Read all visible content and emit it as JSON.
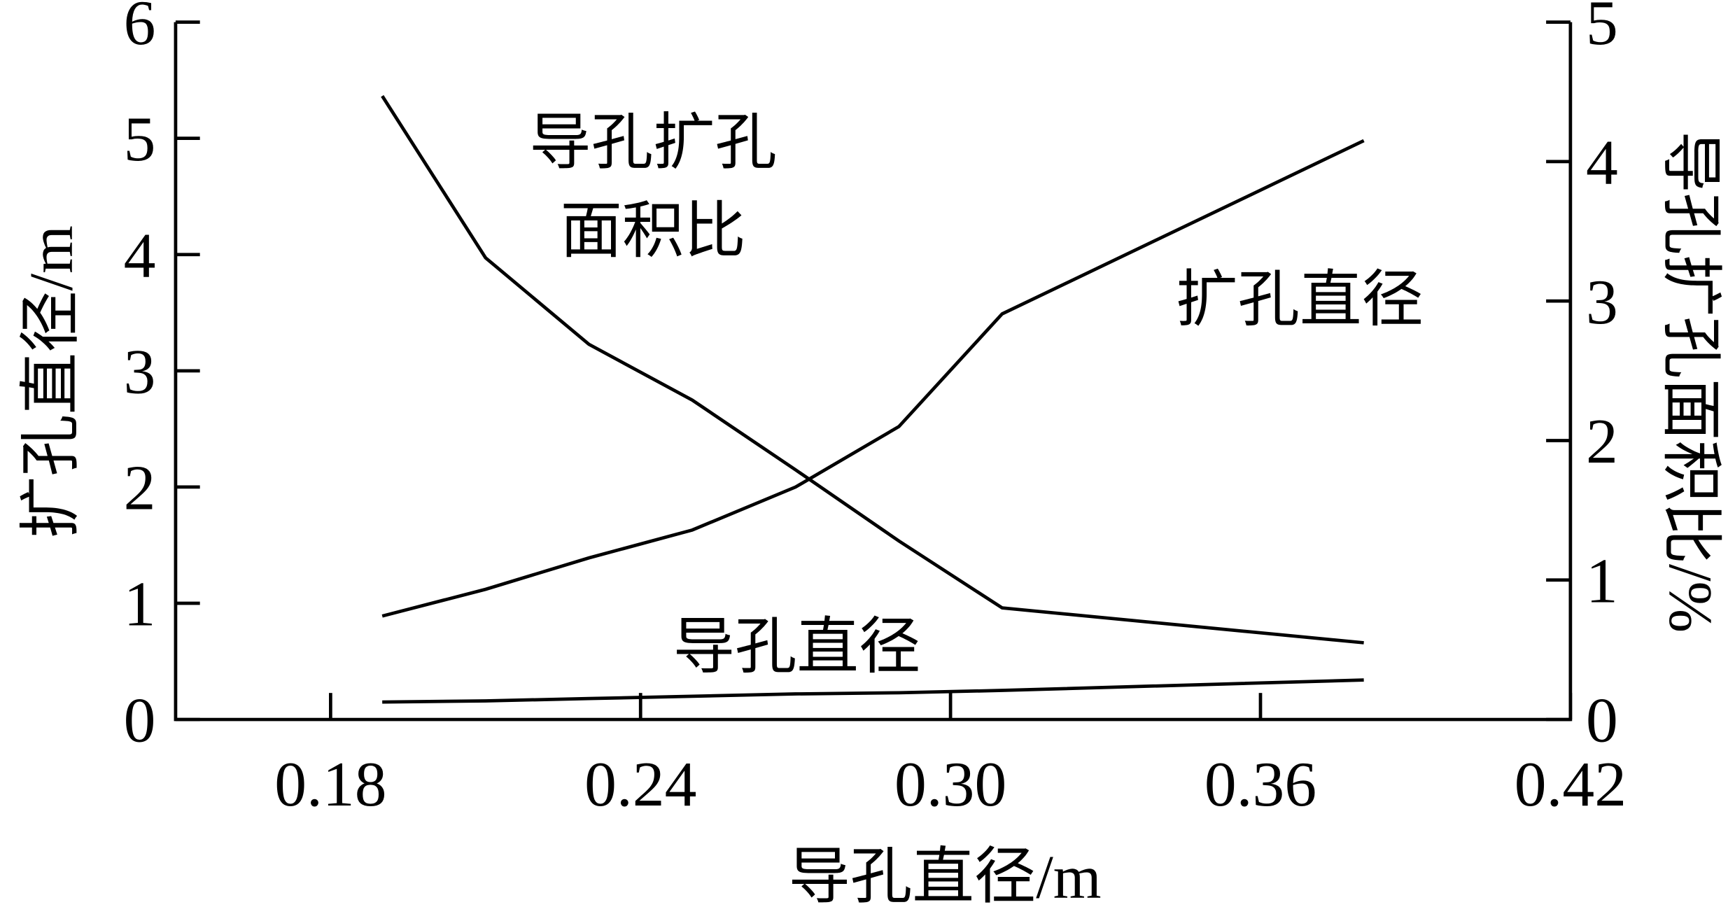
{
  "chart_data": {
    "type": "line",
    "x_label": "导孔直径/m",
    "y_label": "扩孔直径/m",
    "y2_label": "导孔扩孔面积比/%",
    "x": [
      0.19,
      0.21,
      0.23,
      0.25,
      0.27,
      0.29,
      0.31,
      0.38
    ],
    "series": [
      {
        "color": "#000000",
        "values": [
          0.89,
          1.12,
          1.39,
          1.63,
          2.0,
          2.52,
          3.49,
          4.98
        ]
      },
      {
        "color": "#000000",
        "values": [
          0.15,
          0.16,
          0.18,
          0.2,
          0.22,
          0.23,
          0.25,
          0.34
        ]
      },
      {
        "color": "#000000",
        "axis": "y2",
        "values": [
          4.47,
          3.31,
          2.69,
          2.29,
          1.79,
          1.28,
          0.8,
          0.55
        ]
      }
    ],
    "annotations": [
      "扩孔直径",
      "导孔直径",
      "导孔扩孔",
      "面积比"
    ],
    "xlim": [
      0.15,
      0.42
    ],
    "xticks": [
      0.18,
      0.24,
      {
        "value": 0.3,
        "label": "0.30"
      },
      0.36,
      0.42
    ],
    "ylim": [
      0,
      6
    ],
    "yticks": [
      0,
      1,
      2,
      3,
      4,
      5,
      6
    ],
    "y2lim": [
      0,
      5
    ],
    "y2ticks": [
      0,
      1,
      2,
      3,
      4,
      5
    ]
  }
}
